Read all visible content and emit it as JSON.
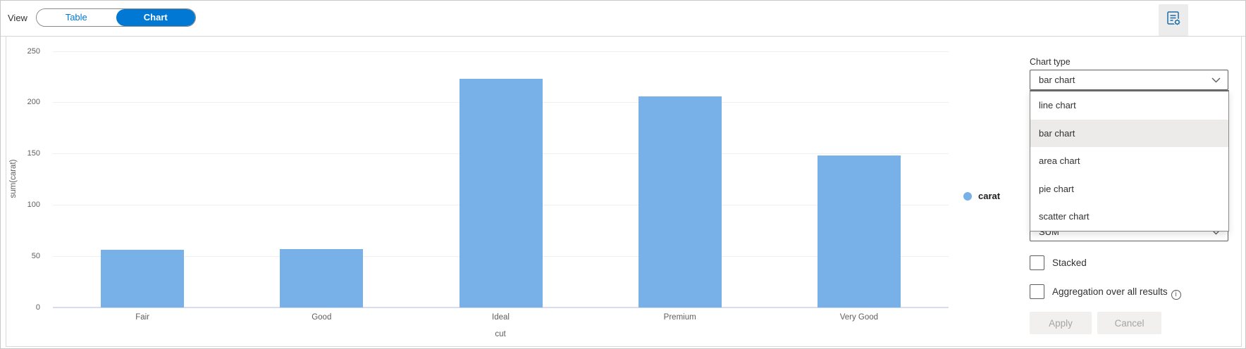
{
  "toolbar": {
    "view_label": "View",
    "toggle": {
      "table_label": "Table",
      "chart_label": "Chart",
      "active": "Chart"
    },
    "icons": {
      "settings_button": "form-settings-icon"
    }
  },
  "chart_data": {
    "type": "bar",
    "categories": [
      "Fair",
      "Good",
      "Ideal",
      "Premium",
      "Very Good"
    ],
    "series": [
      {
        "name": "carat",
        "values": [
          56,
          57,
          223,
          206,
          148
        ]
      }
    ],
    "xlabel": "cut",
    "ylabel": "sum(carat)",
    "ylim": [
      0,
      250
    ],
    "yticks": [
      0,
      50,
      100,
      150,
      200,
      250
    ],
    "grid": true,
    "legend_position": "right",
    "bar_color": "#78b0e8"
  },
  "legend": {
    "items": [
      {
        "label": "carat",
        "color": "#78b0e8"
      }
    ]
  },
  "settings_panel": {
    "chart_type_label": "Chart type",
    "chart_type_value": "bar chart",
    "chart_type_options": [
      "line chart",
      "bar chart",
      "area chart",
      "pie chart",
      "scatter chart"
    ],
    "selected_option": "bar chart",
    "aggregation_value": "SUM",
    "stacked": {
      "label": "Stacked",
      "checked": false
    },
    "aggregation_over_all": {
      "label": "Aggregation over all results",
      "checked": false
    },
    "apply_label": "Apply",
    "cancel_label": "Cancel",
    "icons": {
      "info": "info-icon",
      "select_chevron": "chevron-down-icon"
    }
  },
  "colors": {
    "accent": "#0078d4",
    "bar": "#78b0e8",
    "dropdown_selected_bg": "#edebe9",
    "disabled_button_bg": "#f1f0ef",
    "disabled_button_text": "#a6a4a2"
  }
}
